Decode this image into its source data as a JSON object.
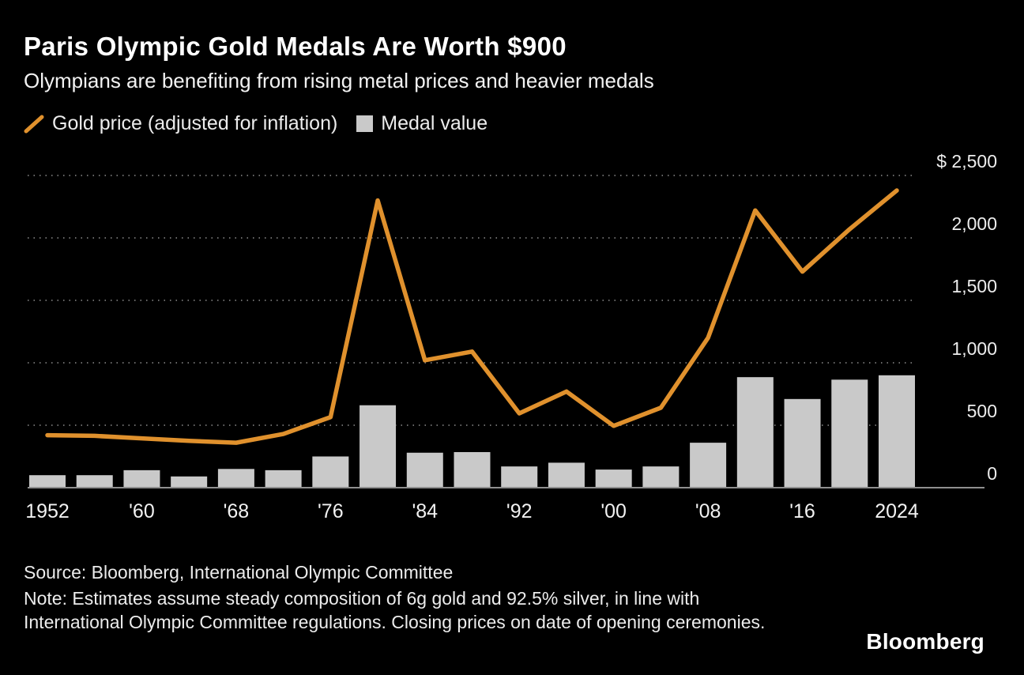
{
  "header": {
    "title": "Paris Olympic Gold Medals Are Worth $900",
    "subtitle": "Olympians are benefiting from rising metal prices and heavier medals"
  },
  "legend": [
    {
      "label": "Gold price (adjusted for inflation)",
      "type": "line",
      "color": "#E0912D"
    },
    {
      "label": "Medal value",
      "type": "bar",
      "color": "#C9C9C9"
    }
  ],
  "chart_data": {
    "type": "combo",
    "title": "Paris Olympic Gold Medals Are Worth $900",
    "subtitle": "Olympians are benefiting from rising metal prices and heavier medals",
    "x": [
      1952,
      1956,
      1960,
      1964,
      1968,
      1972,
      1976,
      1980,
      1984,
      1988,
      1992,
      1996,
      2000,
      2004,
      2008,
      2012,
      2016,
      2020,
      2024
    ],
    "series": [
      {
        "name": "Gold price (adjusted for inflation)",
        "type": "line",
        "color": "#E0912D",
        "values": [
          420,
          415,
          395,
          375,
          360,
          430,
          565,
          2300,
          1020,
          1090,
          595,
          770,
          495,
          640,
          1200,
          2220,
          1730,
          2070,
          2380
        ]
      },
      {
        "name": "Medal value",
        "type": "bar",
        "color": "#C9C9C9",
        "values": [
          100,
          100,
          140,
          90,
          150,
          140,
          250,
          660,
          280,
          285,
          170,
          200,
          145,
          170,
          360,
          885,
          710,
          865,
          900
        ]
      }
    ],
    "x_tick_labels": [
      "1952",
      "'60",
      "'68",
      "'76",
      "'84",
      "'92",
      "'00",
      "'08",
      "'16",
      "2024"
    ],
    "y_ticks": [
      0,
      500,
      1000,
      1500,
      2000,
      2500
    ],
    "y_tick_labels": [
      "0",
      "500",
      "1,000",
      "1,500",
      "2,000",
      "$ 2,500"
    ],
    "ylim": [
      0,
      2500
    ],
    "grid": "horizontal-dotted",
    "y_axis_position": "right",
    "legend_position": "top-left"
  },
  "footer": {
    "source": "Source: Bloomberg, International Olympic Committee",
    "note": "Note: Estimates assume steady composition of 6g gold and 92.5% silver, in line with International Olympic Committee regulations. Closing prices on date of opening ceremonies.",
    "logo": "Bloomberg"
  }
}
